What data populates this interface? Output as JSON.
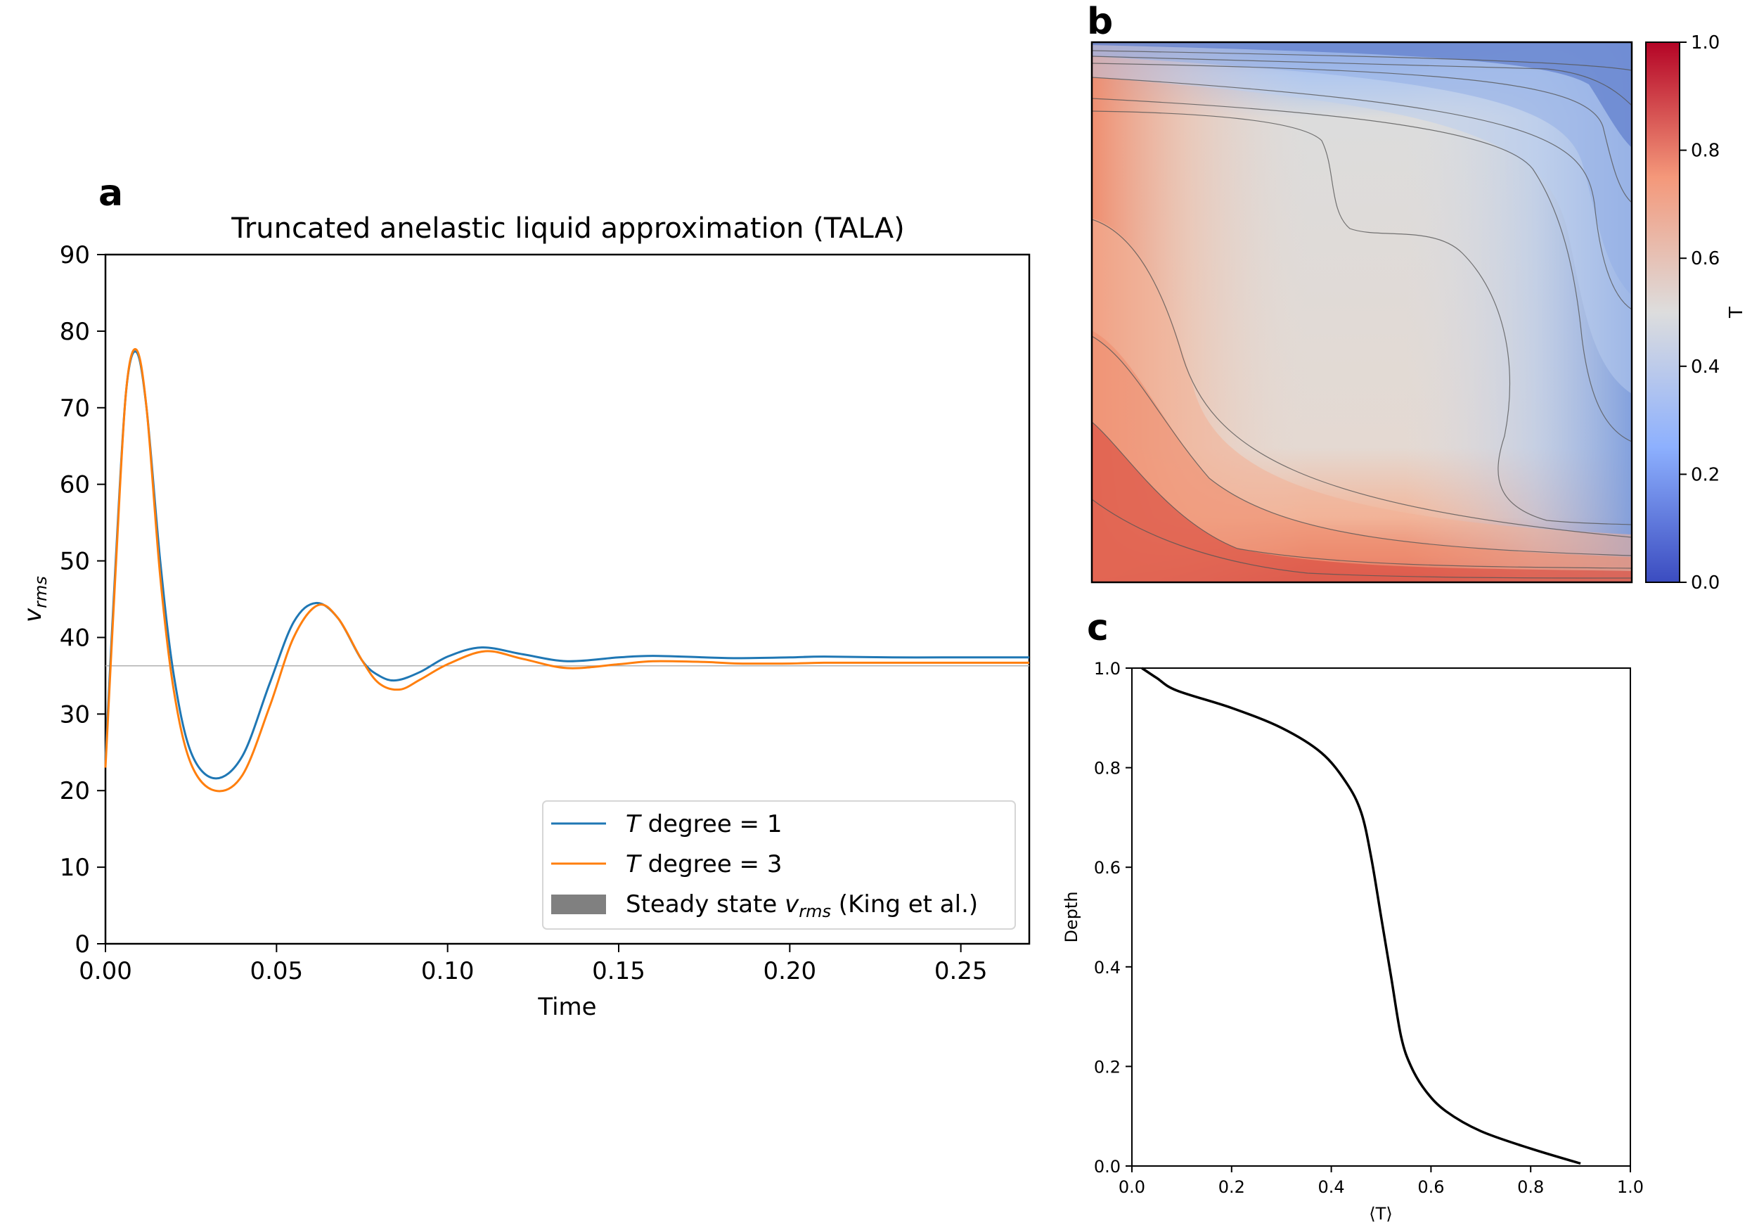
{
  "chart_data": [
    {
      "panel": "a",
      "type": "line",
      "title": "Truncated anelastic liquid approximation (TALA)",
      "xlabel": "Time",
      "ylabel": "v_rms",
      "xlim": [
        0,
        0.27
      ],
      "ylim": [
        0,
        90
      ],
      "xticks": [
        0,
        0.05,
        0.1,
        0.15,
        0.2,
        0.25
      ],
      "xtick_labels": [
        "0.00",
        "0.05",
        "0.10",
        "0.15",
        "0.20",
        "0.25"
      ],
      "yticks": [
        0,
        10,
        20,
        30,
        40,
        50,
        60,
        70,
        80,
        90
      ],
      "ytick_labels": [
        "0",
        "10",
        "20",
        "30",
        "40",
        "50",
        "60",
        "70",
        "80",
        "90"
      ],
      "legend_position": "lower-right",
      "legend": [
        {
          "label_italic": "T",
          "label_rest": " degree = 1",
          "color": "#1f77b4",
          "kind": "line"
        },
        {
          "label_italic": "T",
          "label_rest": " degree = 3",
          "color": "#ff7f0e",
          "kind": "line"
        },
        {
          "label_pre": "Steady state ",
          "label_italic": "v",
          "label_sub": "rms",
          "label_post": " (King et al.)",
          "color": "#808080",
          "kind": "patch"
        }
      ],
      "reference_line": {
        "y": 36.3,
        "color": "#b0b0b0"
      },
      "series": [
        {
          "name": "T degree = 1",
          "color": "#1f77b4",
          "x": [
            0,
            0.003,
            0.006,
            0.009,
            0.012,
            0.016,
            0.02,
            0.025,
            0.032,
            0.04,
            0.048,
            0.055,
            0.0615,
            0.068,
            0.075,
            0.08,
            0.085,
            0.092,
            0.1,
            0.11,
            0.122,
            0.135,
            0.15,
            0.16,
            0.175,
            0.185,
            0.2,
            0.21,
            0.23,
            0.25,
            0.27
          ],
          "y": [
            24,
            50,
            72,
            77.3,
            70,
            50,
            35,
            25,
            21.6,
            24.5,
            34,
            42,
            44.5,
            42.5,
            37,
            35,
            34.4,
            35.5,
            37.5,
            38.7,
            37.8,
            36.9,
            37.4,
            37.6,
            37.4,
            37.3,
            37.4,
            37.5,
            37.4,
            37.4,
            37.4
          ]
        },
        {
          "name": "T degree = 3",
          "color": "#ff7f0e",
          "x": [
            0,
            0.003,
            0.006,
            0.009,
            0.012,
            0.016,
            0.02,
            0.025,
            0.032,
            0.04,
            0.048,
            0.055,
            0.062,
            0.068,
            0.075,
            0.08,
            0.086,
            0.092,
            0.1,
            0.111,
            0.122,
            0.135,
            0.15,
            0.16,
            0.175,
            0.185,
            0.2,
            0.21,
            0.23,
            0.25,
            0.27
          ],
          "y": [
            23,
            49,
            72,
            77.6,
            70,
            48,
            33,
            23.5,
            20.0,
            22,
            31,
            40,
            44.2,
            42.5,
            37,
            34,
            33.2,
            34.5,
            36.5,
            38.2,
            37.2,
            36.0,
            36.5,
            36.9,
            36.8,
            36.6,
            36.6,
            36.7,
            36.7,
            36.7,
            36.7
          ]
        }
      ]
    },
    {
      "panel": "b",
      "type": "heatmap",
      "colorbar_label": "T",
      "colorbar_ticks": [
        "0.0",
        "0.2",
        "0.4",
        "0.6",
        "0.8",
        "1.0"
      ],
      "colormap": [
        "#3b4cc0",
        "#8db0fe",
        "#dddddd",
        "#f4987a",
        "#b40426"
      ],
      "clim": [
        0,
        1
      ]
    },
    {
      "panel": "c",
      "type": "line",
      "xlabel": "⟨T⟩",
      "ylabel": "Depth",
      "xlim": [
        0,
        1
      ],
      "ylim": [
        0,
        1
      ],
      "xtick_labels": [
        "0.0",
        "0.2",
        "0.4",
        "0.6",
        "0.8",
        "1.0"
      ],
      "ytick_labels": [
        "0.0",
        "0.2",
        "0.4",
        "0.6",
        "0.8",
        "1.0"
      ],
      "series": [
        {
          "color": "#000000",
          "x": [
            0.02,
            0.05,
            0.09,
            0.2,
            0.3,
            0.38,
            0.43,
            0.46,
            0.48,
            0.5,
            0.52,
            0.54,
            0.56,
            0.59,
            0.63,
            0.7,
            0.8,
            0.9
          ],
          "y": [
            1.0,
            0.98,
            0.955,
            0.92,
            0.88,
            0.83,
            0.77,
            0.71,
            0.62,
            0.5,
            0.38,
            0.26,
            0.2,
            0.15,
            0.11,
            0.07,
            0.035,
            0.005
          ]
        }
      ]
    }
  ],
  "labels": {
    "a": "a",
    "b": "b",
    "c": "c"
  }
}
